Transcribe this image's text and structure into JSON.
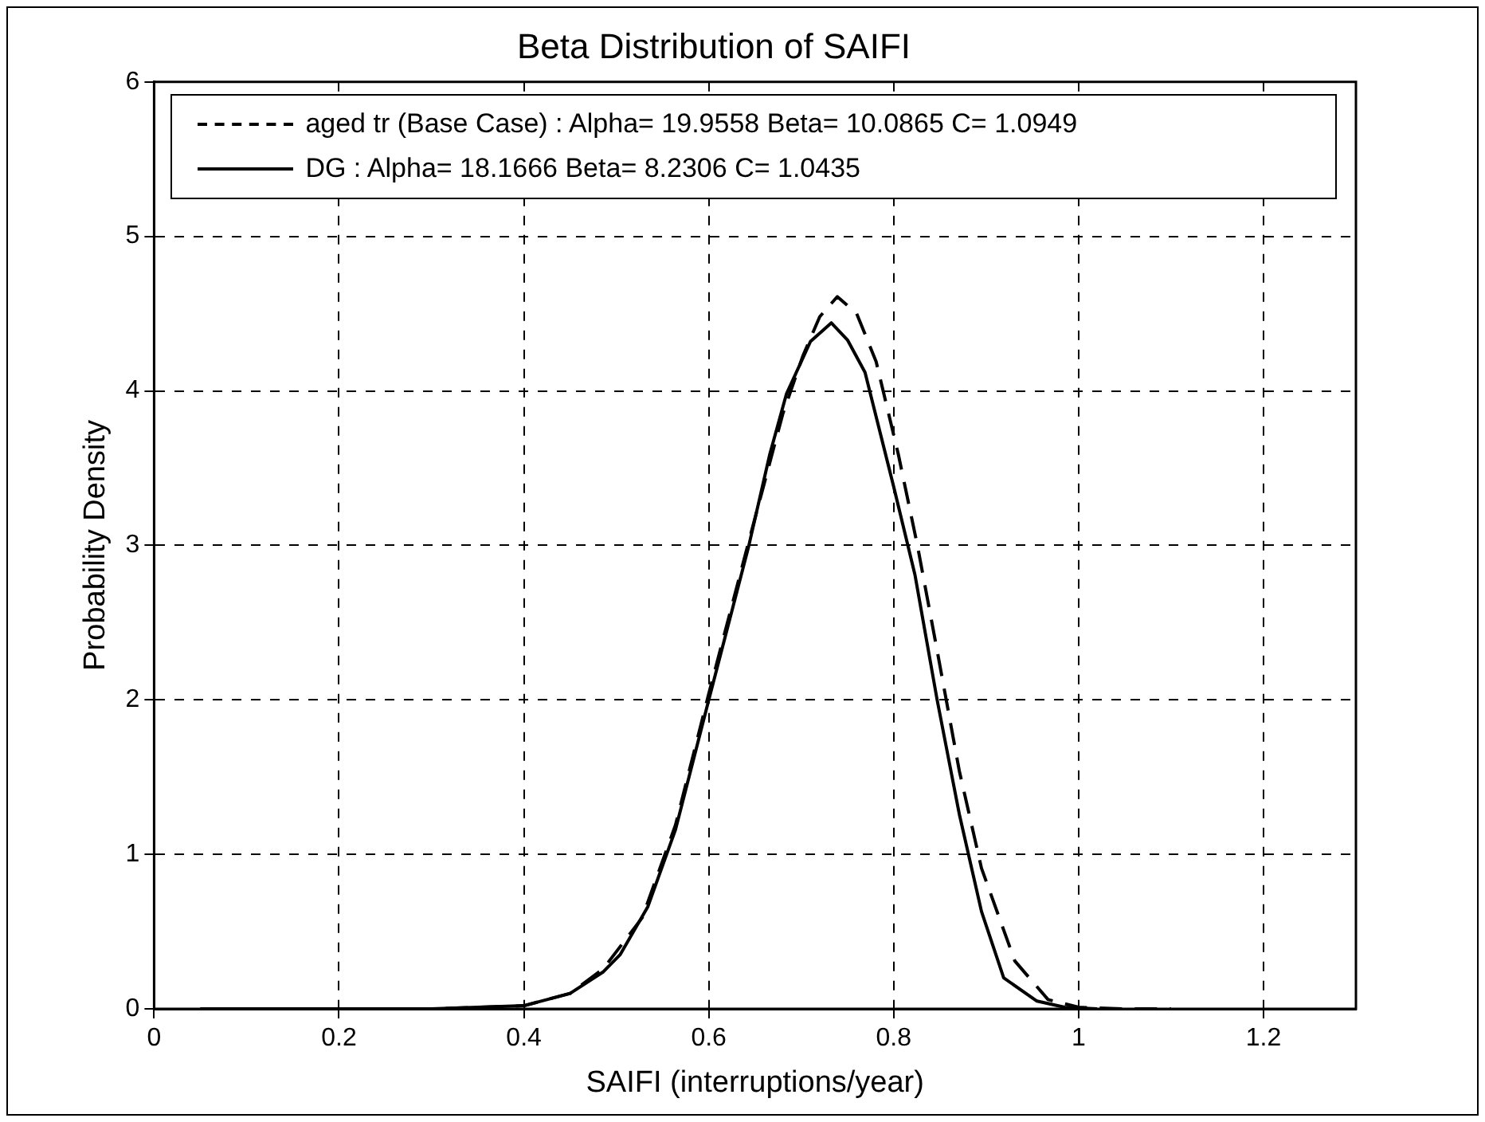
{
  "chart_data": {
    "type": "line",
    "title": "Beta Distribution of SAIFI",
    "xlabel": "SAIFI (interruptions/year)",
    "ylabel": "Probability Density",
    "xlim": [
      0,
      1.3
    ],
    "xticks": [
      0,
      0.2,
      0.4,
      0.6,
      0.8,
      1,
      1.2
    ],
    "ylim": [
      0,
      6
    ],
    "yticks": [
      0,
      1,
      2,
      3,
      4,
      5,
      6
    ],
    "grid": true,
    "legend": "top",
    "marker": "none",
    "series": [
      {
        "name": "aged tr (Base Case) : Alpha= 19.9558 Beta= 10.0865 C= 1.0949",
        "color": "#000000",
        "line_style": "dashed",
        "x": [
          0.05,
          0.3,
          0.4,
          0.45,
          0.486,
          0.528,
          0.564,
          0.6,
          0.643,
          0.68,
          0.702,
          0.72,
          0.739,
          0.76,
          0.781,
          0.805,
          0.826,
          0.847,
          0.871,
          0.895,
          0.931,
          0.967,
          1.0,
          1.05,
          1.1
        ],
        "values": [
          0,
          0,
          0.02,
          0.1,
          0.26,
          0.59,
          1.19,
          2.04,
          3.02,
          3.85,
          4.23,
          4.48,
          4.61,
          4.5,
          4.19,
          3.59,
          2.99,
          2.32,
          1.54,
          0.91,
          0.31,
          0.06,
          0.01,
          0,
          0
        ]
      },
      {
        "name": "DG : Alpha= 18.1666 Beta= 8.2306 C= 1.0435",
        "color": "#000000",
        "line_style": "solid",
        "x": [
          0.05,
          0.3,
          0.4,
          0.45,
          0.486,
          0.504,
          0.534,
          0.564,
          0.6,
          0.643,
          0.666,
          0.684,
          0.71,
          0.7325,
          0.75,
          0.769,
          0.8,
          0.823,
          0.847,
          0.871,
          0.895,
          0.919,
          0.955,
          0.985,
          1.02
        ],
        "values": [
          0,
          0,
          0.02,
          0.1,
          0.24,
          0.35,
          0.66,
          1.16,
          2.0,
          2.99,
          3.59,
          3.98,
          4.32,
          4.44,
          4.33,
          4.12,
          3.38,
          2.81,
          2.0,
          1.26,
          0.63,
          0.2,
          0.05,
          0.01,
          0
        ]
      }
    ]
  }
}
